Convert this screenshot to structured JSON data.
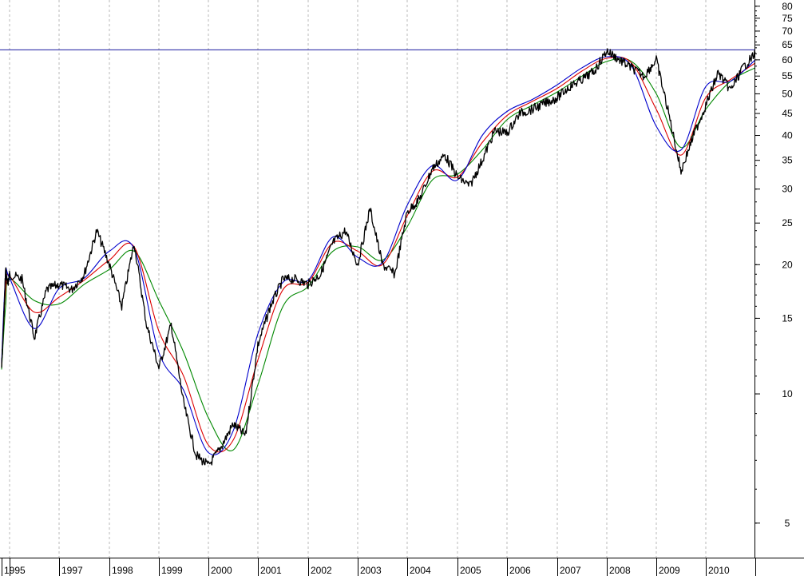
{
  "chart_data": {
    "type": "line",
    "title": "",
    "xlabel": "",
    "ylabel": "",
    "y_scale": "log",
    "ylim": [
      4.3,
      82
    ],
    "y_ticks": [
      {
        "value": 5,
        "label": "5"
      },
      {
        "value": 10,
        "label": "10"
      },
      {
        "value": 15,
        "label": "15"
      },
      {
        "value": 20,
        "label": "20"
      },
      {
        "value": 25,
        "label": "25"
      },
      {
        "value": 30,
        "label": "30"
      },
      {
        "value": 35,
        "label": "35"
      },
      {
        "value": 40,
        "label": "40"
      },
      {
        "value": 45,
        "label": "45"
      },
      {
        "value": 50,
        "label": "50"
      },
      {
        "value": 55,
        "label": "55"
      },
      {
        "value": 60,
        "label": "60"
      },
      {
        "value": 65,
        "label": "65"
      },
      {
        "value": 70,
        "label": "70"
      },
      {
        "value": 75,
        "label": "75"
      },
      {
        "value": 80,
        "label": "80"
      }
    ],
    "x_ticks": [
      "1995",
      "1997",
      "1998",
      "1999",
      "2000",
      "2001",
      "2002",
      "2003",
      "2004",
      "2005",
      "2006",
      "2007",
      "2008",
      "2009",
      "2010"
    ],
    "grid": "vertical dashed",
    "reference_line": {
      "value": 63.3,
      "color": "#1a1aa0"
    },
    "colors": {
      "price": "#000000",
      "short_ma": "#0000cc",
      "mid_ma": "#dd0000",
      "long_ma": "#008800"
    },
    "series": [
      {
        "name": "",
        "color": "#000000",
        "x": [
          "1995-01",
          "1995-04",
          "1995-07",
          "1995-10",
          "1996-01",
          "1996-04",
          "1996-07",
          "1996-10",
          "1997-01",
          "1997-04",
          "1997-07",
          "1997-10",
          "1998-01",
          "1998-04",
          "1998-07",
          "1998-10",
          "1999-01",
          "1999-04",
          "1999-07",
          "1999-10",
          "2000-01",
          "2000-04",
          "2000-07",
          "2000-10",
          "2001-01",
          "2001-04",
          "2001-07",
          "2001-10",
          "2002-01",
          "2002-04",
          "2002-07",
          "2002-10",
          "2003-01",
          "2003-04",
          "2003-07",
          "2003-10",
          "2004-01",
          "2004-04",
          "2004-07",
          "2004-10",
          "2005-01",
          "2005-04",
          "2005-07",
          "2005-10",
          "2006-01",
          "2006-04",
          "2006-07",
          "2006-10",
          "2007-01",
          "2007-04",
          "2007-07",
          "2007-10",
          "2008-01",
          "2008-04",
          "2008-07",
          "2008-10",
          "2009-01",
          "2009-04",
          "2009-07",
          "2009-10",
          "2010-01",
          "2010-04",
          "2010-07",
          "2010-10",
          "2011-01"
        ],
        "values": [
          11.5,
          14.5,
          19.5,
          18,
          19,
          18.5,
          13.5,
          17.5,
          18,
          17.5,
          19,
          24,
          20,
          16,
          22.5,
          14.5,
          11.5,
          14.5,
          9.5,
          7.2,
          6.8,
          7.5,
          8.5,
          8.0,
          13.0,
          16.0,
          18.5,
          18.5,
          18,
          19,
          22.5,
          24,
          20,
          27,
          20,
          19,
          26.5,
          28.5,
          33.5,
          36,
          32,
          30.5,
          35,
          41,
          40.5,
          45,
          46,
          47.5,
          49,
          52,
          54,
          56.5,
          63,
          60,
          57.5,
          55,
          60,
          45,
          33,
          40,
          47,
          56,
          51,
          57.5,
          62
        ]
      },
      {
        "name": "",
        "color": "#0000cc",
        "x": [
          "1995-01",
          "1995-07",
          "1996-01",
          "1996-07",
          "1997-01",
          "1997-07",
          "1998-01",
          "1998-07",
          "1999-01",
          "1999-07",
          "2000-01",
          "2000-07",
          "2001-01",
          "2001-07",
          "2002-01",
          "2002-07",
          "2003-01",
          "2003-07",
          "2004-01",
          "2004-07",
          "2005-01",
          "2005-07",
          "2006-01",
          "2006-07",
          "2007-01",
          "2007-07",
          "2008-01",
          "2008-07",
          "2009-01",
          "2009-07",
          "2010-01",
          "2010-07",
          "2011-01"
        ],
        "values": [
          11.8,
          18.8,
          18.6,
          14.2,
          17.6,
          18.6,
          21.5,
          21.8,
          12.5,
          10.2,
          7.3,
          8.2,
          13.8,
          18.2,
          18.4,
          23.2,
          20.8,
          20.2,
          27.5,
          34,
          31.5,
          40,
          45.5,
          48.5,
          52.5,
          57.5,
          61,
          58,
          42,
          37,
          52,
          53.5,
          60
        ]
      },
      {
        "name": "",
        "color": "#dd0000",
        "x": [
          "1995-01",
          "1995-07",
          "1996-01",
          "1996-07",
          "1997-01",
          "1997-07",
          "1998-01",
          "1998-07",
          "1999-01",
          "1999-07",
          "2000-01",
          "2000-07",
          "2001-01",
          "2001-07",
          "2002-01",
          "2002-07",
          "2003-01",
          "2003-07",
          "2004-01",
          "2004-07",
          "2005-01",
          "2005-07",
          "2006-01",
          "2006-07",
          "2007-01",
          "2007-07",
          "2008-01",
          "2008-07",
          "2009-01",
          "2009-07",
          "2010-01",
          "2010-07",
          "2011-01"
        ],
        "values": [
          11.6,
          17.5,
          18.8,
          15.5,
          16.8,
          18.4,
          20.5,
          22.0,
          14.0,
          11.0,
          7.6,
          7.8,
          12.0,
          17.5,
          18.2,
          22.5,
          21.5,
          20.0,
          26.0,
          33.0,
          32.0,
          38.5,
          44.5,
          48.0,
          51.5,
          56.5,
          60.5,
          59.0,
          46.0,
          36.0,
          49.0,
          54.0,
          59.0
        ]
      },
      {
        "name": "",
        "color": "#008800",
        "x": [
          "1995-01",
          "1995-07",
          "1996-01",
          "1996-07",
          "1997-01",
          "1997-07",
          "1998-01",
          "1998-07",
          "1999-01",
          "1999-07",
          "2000-01",
          "2000-07",
          "2001-01",
          "2001-07",
          "2002-01",
          "2002-07",
          "2003-01",
          "2003-07",
          "2004-01",
          "2004-07",
          "2005-01",
          "2005-07",
          "2006-01",
          "2006-07",
          "2007-01",
          "2007-07",
          "2008-01",
          "2008-07",
          "2009-01",
          "2009-07",
          "2010-01",
          "2010-07",
          "2011-01"
        ],
        "values": [
          11.4,
          16.0,
          18.5,
          16.5,
          16.2,
          18.0,
          19.5,
          21.5,
          16.5,
          12.5,
          8.8,
          7.4,
          10.5,
          16.0,
          17.8,
          21.5,
          22.0,
          20.5,
          24.5,
          31.5,
          32.5,
          37.0,
          43.5,
          47.0,
          50.5,
          55.0,
          59.5,
          59.5,
          50.0,
          37.5,
          46.0,
          53.5,
          57.5
        ]
      }
    ]
  }
}
